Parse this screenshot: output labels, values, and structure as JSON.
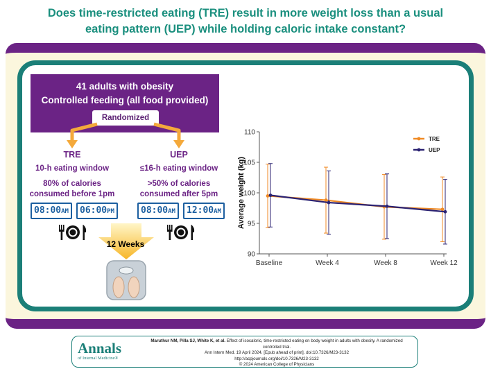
{
  "title": {
    "line1": "Does time-restricted eating (TRE) result in more weight loss than a usual",
    "line2": "eating pattern (UEP) while holding caloric intake constant?"
  },
  "study": {
    "participants": "41 adults with obesity",
    "design": "Controlled feeding (all food provided)",
    "randomized": "Randomized"
  },
  "arms": {
    "tre": {
      "name": "TRE",
      "window": "10-h eating window",
      "calories_line1": "80% of calories",
      "calories_line2": "consumed before 1pm",
      "clock1_time": "08:00",
      "clock1_ampm": "AM",
      "clock2_time": "06:00",
      "clock2_ampm": "PM"
    },
    "uep": {
      "name": "UEP",
      "window": "≤16-h eating window",
      "calories_line1": ">50% of calories",
      "calories_line2": "consumed after 5pm",
      "clock1_time": "08:00",
      "clock1_ampm": "AM",
      "clock2_time": "12:00",
      "clock2_ampm": "AM"
    }
  },
  "duration": "12 Weeks",
  "colors": {
    "tre": "#f08a24",
    "uep": "#2b2272",
    "purple": "#6b2385",
    "teal": "#1b7f78"
  },
  "chart_data": {
    "type": "line",
    "title": "",
    "xlabel": "",
    "ylabel": "Average weight (kg)",
    "categories": [
      "Baseline",
      "Week 4",
      "Week 8",
      "Week 12"
    ],
    "ylim": [
      90,
      110
    ],
    "yticks": [
      90,
      95,
      100,
      105,
      110
    ],
    "legend_position": "top-right",
    "series": [
      {
        "name": "TRE",
        "values": [
          99.5,
          98.8,
          97.7,
          97.3
        ],
        "err_low": [
          94.3,
          93.4,
          92.4,
          92.0
        ],
        "err_high": [
          104.7,
          104.2,
          103.0,
          102.6
        ]
      },
      {
        "name": "UEP",
        "values": [
          99.6,
          98.4,
          97.8,
          96.9
        ],
        "err_low": [
          94.4,
          93.2,
          92.5,
          91.6
        ],
        "err_high": [
          104.8,
          103.6,
          103.1,
          102.2
        ]
      }
    ]
  },
  "footer": {
    "logo_main": "Annals",
    "logo_sub": "of Internal Medicine®",
    "authors": "Maruthur NM, Pilla SJ, White K, et al.",
    "citation_title": "Effect of isocaloric, time-restricted eating on body weight in adults with obesity. A randomized controlled trial.",
    "journal": "Ann Intern Med. 19 April 2024. [Epub ahead of print]. doi:10.7326/M23-3132",
    "url": "http://acpjournals.org/doi/10.7326/M23-3132",
    "copyright": "© 2024 American College of Physicians"
  }
}
